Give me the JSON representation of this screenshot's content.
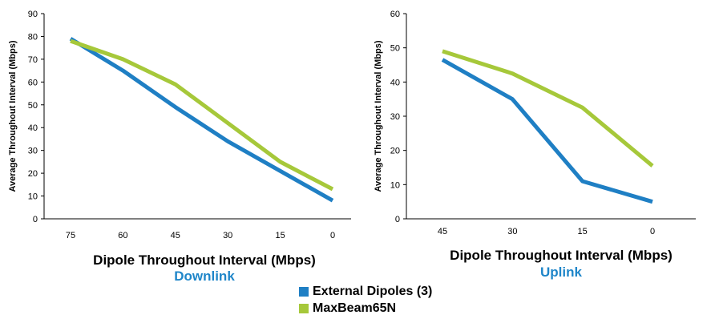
{
  "colors": {
    "external": "#1f7fc4",
    "maxbeam": "#a6c83a",
    "subtitle": "#1f86c9"
  },
  "legend": {
    "items": [
      {
        "label": "External Dipoles (3)",
        "color": "#1f7fc4"
      },
      {
        "label": "MaxBeam65N",
        "color": "#a6c83a"
      }
    ]
  },
  "chart_data": [
    {
      "type": "line",
      "title": "",
      "subtitle": "Downlink",
      "xlabel": "Dipole Throughout Interval (Mbps)",
      "ylabel": "Average Throughout Interval (Mbps)",
      "categories": [
        "75",
        "60",
        "45",
        "30",
        "15",
        "0"
      ],
      "yticks": [
        0,
        10,
        20,
        30,
        40,
        50,
        60,
        70,
        80,
        90
      ],
      "ylim": [
        0,
        90
      ],
      "grid": false,
      "series": [
        {
          "name": "External Dipoles (3)",
          "color": "#1f7fc4",
          "values": [
            79,
            65,
            49,
            34,
            21,
            8
          ]
        },
        {
          "name": "MaxBeam65N",
          "color": "#a6c83a",
          "values": [
            78,
            70,
            59,
            42,
            25,
            13
          ]
        }
      ]
    },
    {
      "type": "line",
      "title": "",
      "subtitle": "Uplink",
      "xlabel": "Dipole Throughout Interval (Mbps)",
      "ylabel": "Average Throughout Interval (Mbps)",
      "categories": [
        "45",
        "30",
        "15",
        "0"
      ],
      "yticks": [
        0,
        10,
        20,
        30,
        40,
        50,
        60
      ],
      "ylim": [
        0,
        60
      ],
      "grid": false,
      "series": [
        {
          "name": "External Dipoles (3)",
          "color": "#1f7fc4",
          "values": [
            46.5,
            35,
            11,
            5
          ]
        },
        {
          "name": "MaxBeam65N",
          "color": "#a6c83a",
          "values": [
            49,
            42.5,
            32.5,
            15.5
          ]
        }
      ]
    }
  ]
}
